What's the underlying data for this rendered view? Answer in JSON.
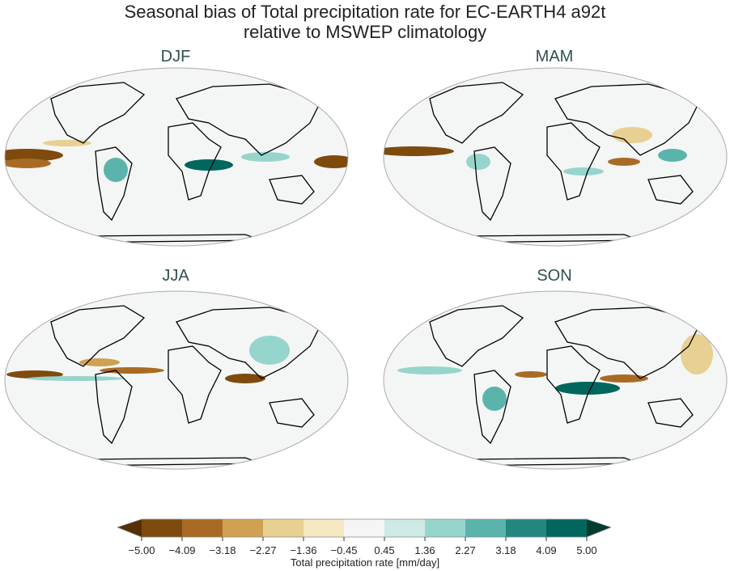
{
  "title_line1": "Seasonal bias of Total precipitation rate for EC-EARTH4 a92t",
  "title_line2": "relative to MSWEP climatology",
  "panels": [
    {
      "label": "DJF"
    },
    {
      "label": "MAM"
    },
    {
      "label": "JJA"
    },
    {
      "label": "SON"
    }
  ],
  "colorbar": {
    "label": "Total precipitation rate [mm/day]",
    "ticks": [
      "−5.00",
      "−4.09",
      "−3.18",
      "−2.27",
      "−1.36",
      "−0.45",
      "0.45",
      "1.36",
      "2.27",
      "3.18",
      "4.09",
      "5.00"
    ],
    "colors": [
      "#7f4a0d",
      "#a96b24",
      "#d0a152",
      "#e8cf92",
      "#f6e8c3",
      "#f4f6f5",
      "#cdeae5",
      "#96d5cc",
      "#5ab4ac",
      "#21877f",
      "#01665e"
    ],
    "under_color": "#543005",
    "over_color": "#003c30",
    "extend": "both"
  }
}
